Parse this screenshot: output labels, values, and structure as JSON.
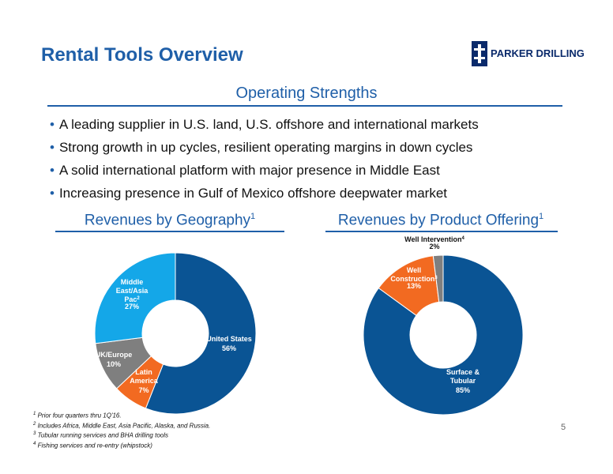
{
  "title": "Rental Tools Overview",
  "logo": {
    "text": "PARKER DRILLING",
    "color": "#0a2a6b"
  },
  "strengths": {
    "title": "Operating Strengths",
    "bullets": [
      "A leading supplier in U.S. land, U.S. offshore and international markets",
      "Strong growth in up cycles, resilient operating margins in down cycles",
      "A solid international platform with major presence in Middle East",
      "Increasing presence in Gulf of Mexico offshore deepwater market"
    ]
  },
  "colors": {
    "accent": "#1f5fa8"
  },
  "chart_data": [
    {
      "type": "pie",
      "title": "Revenues by Geography",
      "title_sup": "1",
      "labels": [
        "United States",
        "Latin America",
        "UK/Europe",
        "Middle East/Asia Pac"
      ],
      "label_sups": [
        "",
        "",
        "",
        "2"
      ],
      "values": [
        56,
        7,
        10,
        27
      ],
      "value_labels": [
        "56%",
        "7%",
        "10%",
        "27%"
      ],
      "colors": [
        "#0a5494",
        "#f26a21",
        "#7f7f7f",
        "#14a7e8"
      ]
    },
    {
      "type": "pie",
      "title": "Revenues by Product Offering",
      "title_sup": "1",
      "labels": [
        "Surface & Tubular",
        "Well Construction",
        "Well Intervention"
      ],
      "label_sups": [
        "",
        "3",
        "4"
      ],
      "values": [
        85,
        13,
        2
      ],
      "value_labels": [
        "85%",
        "13%",
        "2%"
      ],
      "colors": [
        "#0a5494",
        "#f26a21",
        "#7f7f7f"
      ]
    }
  ],
  "footnotes": [
    {
      "sup": "1",
      "text": "Prior four quarters thru 1Q'16."
    },
    {
      "sup": "2",
      "text": "Includes Africa, Middle East, Asia Pacific, Alaska, and Russia."
    },
    {
      "sup": "3",
      "text": "Tubular running services and BHA drilling tools"
    },
    {
      "sup": "4",
      "text": "Fishing services and re-entry (whipstock)"
    }
  ],
  "page_number": "5"
}
